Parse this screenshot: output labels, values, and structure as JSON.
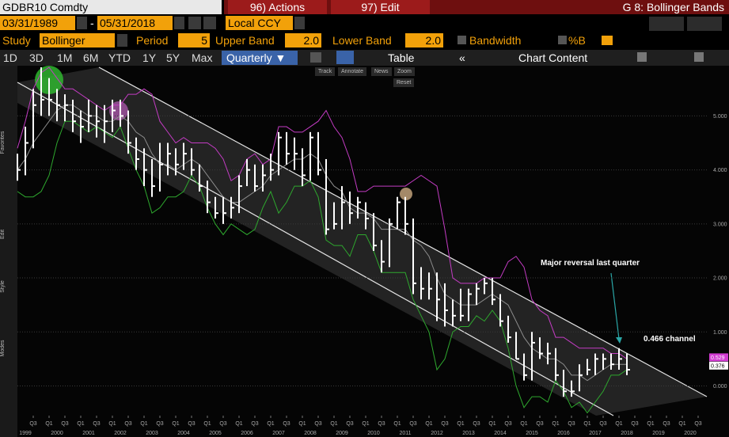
{
  "header": {
    "security": "GDBR10 Comdty",
    "actions": "96) Actions",
    "edit": "97) Edit",
    "page": "G 8: Bollinger Bands"
  },
  "controls": {
    "start_date": "03/31/1989",
    "separator": "-",
    "end_date": "05/31/2018",
    "currency": "Local CCY",
    "study_label": "Study",
    "study": "Bollinger",
    "period_label": "Period",
    "period": "5",
    "upper_label": "Upper Band",
    "upper": "2.0",
    "lower_label": "Lower Band",
    "lower": "2.0",
    "bandwidth": "Bandwidth",
    "percent_b": "%B"
  },
  "ranges": [
    "1D",
    "3D",
    "1M",
    "6M",
    "YTD",
    "1Y",
    "5Y",
    "Max"
  ],
  "frequency": "Quarterly ▼",
  "table": "Table",
  "collapse": "«",
  "chart_content": "Chart Content",
  "chart_tools": [
    "Track",
    "Annotate",
    "News",
    "Zoom",
    "Reset"
  ],
  "side_tabs": [
    "Favorites",
    "Edit",
    "Style",
    "Modes"
  ],
  "chart_data": {
    "type": "ohlc",
    "color": "#ffffff",
    "x": [
      1999,
      1999.25,
      1999.5,
      1999.75,
      2000,
      2000.25,
      2000.5,
      2000.75,
      2001,
      2001.25,
      2001.5,
      2001.75,
      2002,
      2002.25,
      2002.5,
      2002.75,
      2003,
      2003.25,
      2003.5,
      2003.75,
      2004,
      2004.25,
      2004.5,
      2004.75,
      2005,
      2005.25,
      2005.5,
      2005.75,
      2006,
      2006.25,
      2006.5,
      2006.75,
      2007,
      2007.25,
      2007.5,
      2007.75,
      2008,
      2008.25,
      2008.5,
      2008.75,
      2009,
      2009.25,
      2009.5,
      2009.75,
      2010,
      2010.25,
      2010.5,
      2010.75,
      2011,
      2011.25,
      2011.5,
      2011.75,
      2012,
      2012.25,
      2012.5,
      2012.75,
      2013,
      2013.25,
      2013.5,
      2013.75,
      2014,
      2014.25,
      2014.5,
      2014.75,
      2015,
      2015.25,
      2015.5,
      2015.75,
      2016,
      2016.25,
      2016.5,
      2016.75,
      2017,
      2017.25,
      2017.5,
      2017.75,
      2018,
      2018.25
    ],
    "high": [
      4.3,
      4.8,
      5.5,
      5.9,
      5.7,
      5.5,
      5.4,
      5.3,
      5.1,
      5.3,
      5.2,
      5.2,
      5.3,
      5.3,
      5.1,
      4.6,
      4.4,
      4.2,
      4.5,
      4.5,
      4.4,
      4.5,
      4.4,
      4.1,
      3.8,
      3.5,
      3.5,
      3.5,
      3.9,
      4.2,
      4.1,
      4.1,
      4.3,
      4.7,
      4.7,
      4.6,
      4.4,
      4.7,
      4.7,
      4.2,
      3.4,
      3.7,
      3.6,
      3.5,
      3.4,
      3.2,
      2.7,
      3.1,
      3.5,
      3.5,
      3.1,
      2.2,
      2.1,
      2.1,
      1.9,
      1.6,
      1.8,
      1.8,
      1.9,
      2.0,
      2.0,
      1.7,
      1.3,
      1.0,
      0.6,
      1.0,
      0.9,
      0.8,
      0.7,
      0.3,
      0.1,
      0.4,
      0.5,
      0.6,
      0.6,
      0.6,
      0.7,
      0.6
    ],
    "low": [
      3.8,
      3.9,
      4.4,
      5.0,
      5.0,
      4.9,
      4.9,
      4.7,
      4.5,
      4.7,
      4.6,
      4.5,
      4.7,
      4.8,
      4.3,
      4.0,
      3.7,
      3.5,
      3.6,
      3.9,
      3.9,
      4.0,
      3.9,
      3.6,
      3.2,
      3.1,
      3.0,
      3.1,
      3.2,
      3.7,
      3.6,
      3.6,
      3.8,
      3.9,
      4.1,
      4.0,
      3.7,
      3.8,
      3.9,
      2.8,
      2.9,
      2.9,
      3.0,
      3.1,
      2.9,
      2.5,
      2.1,
      2.2,
      2.9,
      2.8,
      1.7,
      1.6,
      1.6,
      1.2,
      1.1,
      1.1,
      1.2,
      1.2,
      1.5,
      1.7,
      1.5,
      1.1,
      0.8,
      0.5,
      0.1,
      0.1,
      0.5,
      0.4,
      0.1,
      -0.2,
      -0.2,
      -0.1,
      0.2,
      0.2,
      0.3,
      0.3,
      0.3,
      0.2
    ],
    "close": [
      4.0,
      4.5,
      5.2,
      5.3,
      5.3,
      5.2,
      5.2,
      4.9,
      4.8,
      5.0,
      4.9,
      4.9,
      5.1,
      5.0,
      4.5,
      4.2,
      4.0,
      3.7,
      4.1,
      4.3,
      4.1,
      4.3,
      4.0,
      3.7,
      3.4,
      3.2,
      3.2,
      3.3,
      3.7,
      4.0,
      3.7,
      3.9,
      4.0,
      4.6,
      4.3,
      4.3,
      3.9,
      4.6,
      4.0,
      2.9,
      3.0,
      3.4,
      3.2,
      3.4,
      3.1,
      2.6,
      2.3,
      3.0,
      3.4,
      3.0,
      1.9,
      1.8,
      1.8,
      1.6,
      1.4,
      1.3,
      1.3,
      1.7,
      1.8,
      1.9,
      1.6,
      1.2,
      0.9,
      0.5,
      0.2,
      0.8,
      0.6,
      0.6,
      0.2,
      -0.1,
      -0.1,
      0.2,
      0.3,
      0.5,
      0.5,
      0.4,
      0.5,
      0.3
    ],
    "bands": [
      {
        "color": "#c43cc4",
        "values": [
          4.4,
          4.9,
          5.5,
          5.8,
          5.9,
          5.7,
          5.5,
          5.5,
          5.4,
          5.3,
          5.2,
          5.1,
          5.2,
          5.2,
          5.4,
          5.4,
          5.5,
          5.4,
          4.9,
          4.7,
          4.5,
          4.6,
          4.5,
          4.5,
          4.5,
          4.4,
          4.2,
          3.8,
          3.9,
          4.2,
          4.3,
          4.1,
          4.2,
          4.8,
          4.8,
          4.7,
          4.7,
          4.8,
          4.9,
          5.1,
          4.8,
          4.6,
          4.2,
          3.6,
          3.6,
          3.7,
          3.7,
          3.7,
          3.7,
          3.7,
          3.8,
          3.9,
          3.8,
          3.7,
          2.9,
          2.0,
          1.9,
          1.9,
          1.9,
          2.0,
          2.0,
          2.0,
          2.3,
          2.4,
          2.2,
          1.6,
          1.4,
          1.3,
          0.9,
          0.9,
          0.8,
          0.7,
          0.7,
          0.7,
          0.7,
          0.6,
          0.6,
          0.5
        ]
      },
      {
        "color": "#8c8c8c",
        "values": [
          4.0,
          4.2,
          4.5,
          4.7,
          4.9,
          5.1,
          5.2,
          5.2,
          5.1,
          5.0,
          5.0,
          4.9,
          4.9,
          5.0,
          4.9,
          4.7,
          4.6,
          4.3,
          4.1,
          4.1,
          4.0,
          4.1,
          4.2,
          4.1,
          3.9,
          3.7,
          3.5,
          3.4,
          3.4,
          3.5,
          3.6,
          3.7,
          3.9,
          4.0,
          4.1,
          4.2,
          4.2,
          4.3,
          4.2,
          3.9,
          3.7,
          3.6,
          3.3,
          3.2,
          3.2,
          3.1,
          2.9,
          2.9,
          2.9,
          2.9,
          2.7,
          2.6,
          2.4,
          2.0,
          1.7,
          1.6,
          1.5,
          1.5,
          1.5,
          1.6,
          1.7,
          1.6,
          1.5,
          1.2,
          0.9,
          0.7,
          0.6,
          0.5,
          0.5,
          0.4,
          0.2,
          0.2,
          0.1,
          0.2,
          0.3,
          0.4,
          0.4,
          0.4
        ]
      },
      {
        "color": "#2ea82e",
        "values": [
          3.6,
          3.5,
          3.5,
          3.6,
          3.9,
          4.5,
          4.9,
          4.9,
          4.8,
          4.7,
          4.8,
          4.7,
          4.6,
          4.8,
          4.4,
          4.0,
          3.7,
          3.2,
          3.3,
          3.5,
          3.5,
          3.6,
          3.9,
          3.7,
          3.3,
          3.0,
          2.8,
          3.0,
          2.9,
          2.8,
          2.9,
          3.3,
          3.6,
          3.2,
          3.4,
          3.7,
          3.7,
          3.8,
          3.5,
          2.7,
          2.6,
          2.6,
          2.4,
          2.8,
          2.8,
          2.5,
          2.1,
          2.1,
          2.1,
          2.1,
          1.6,
          1.3,
          1.0,
          0.3,
          0.5,
          1.0,
          1.1,
          1.1,
          1.3,
          1.2,
          1.4,
          1.2,
          0.7,
          0.0,
          -0.4,
          -0.2,
          -0.2,
          -0.3,
          0.1,
          -0.1,
          -0.4,
          -0.3,
          -0.5,
          -0.3,
          -0.1,
          0.2,
          0.2,
          0.3
        ]
      }
    ],
    "xlim": [
      1999,
      2020.775
    ],
    "xticks": [
      {
        "value": 1999.5,
        "label": "Q3"
      },
      {
        "value": 2000,
        "label": "Q1"
      },
      {
        "value": 2000.5,
        "label": "Q3"
      },
      {
        "value": 2001,
        "label": "Q1"
      },
      {
        "value": 2001.5,
        "label": "Q3"
      },
      {
        "value": 2002,
        "label": "Q1"
      },
      {
        "value": 2002.5,
        "label": "Q3"
      },
      {
        "value": 2003,
        "label": "Q1"
      },
      {
        "value": 2003.5,
        "label": "Q3"
      },
      {
        "value": 2004,
        "label": "Q1"
      },
      {
        "value": 2004.5,
        "label": "Q3"
      },
      {
        "value": 2005,
        "label": "Q1"
      },
      {
        "value": 2005.5,
        "label": "Q3"
      },
      {
        "value": 2006,
        "label": "Q1"
      },
      {
        "value": 2006.5,
        "label": "Q3"
      },
      {
        "value": 2007,
        "label": "Q1"
      },
      {
        "value": 2007.5,
        "label": "Q3"
      },
      {
        "value": 2008,
        "label": "Q1"
      },
      {
        "value": 2008.5,
        "label": "Q3"
      },
      {
        "value": 2009,
        "label": "Q1"
      },
      {
        "value": 2009.5,
        "label": "Q3"
      },
      {
        "value": 2010,
        "label": "Q1"
      },
      {
        "value": 2010.5,
        "label": "Q3"
      },
      {
        "value": 2011,
        "label": "Q1"
      },
      {
        "value": 2011.5,
        "label": "Q3"
      },
      {
        "value": 2012,
        "label": "Q1"
      },
      {
        "value": 2012.5,
        "label": "Q3"
      },
      {
        "value": 2013,
        "label": "Q1"
      },
      {
        "value": 2013.5,
        "label": "Q3"
      },
      {
        "value": 2014,
        "label": "Q1"
      },
      {
        "value": 2014.5,
        "label": "Q3"
      },
      {
        "value": 2015,
        "label": "Q1"
      },
      {
        "value": 2015.5,
        "label": "Q3"
      },
      {
        "value": 2016,
        "label": "Q1"
      },
      {
        "value": 2016.5,
        "label": "Q3"
      },
      {
        "value": 2017,
        "label": "Q1"
      },
      {
        "value": 2017.5,
        "label": "Q3"
      },
      {
        "value": 2018,
        "label": "Q1"
      },
      {
        "value": 2018.5,
        "label": "Q3"
      },
      {
        "value": 2019,
        "label": "Q1"
      },
      {
        "value": 2019.5,
        "label": "Q3"
      },
      {
        "value": 2020,
        "label": "Q1"
      },
      {
        "value": 2020.5,
        "label": "Q3"
      }
    ],
    "year_ticks": [
      {
        "value": 1999.25,
        "label": "1999"
      },
      {
        "value": 2000.25,
        "label": "2000"
      },
      {
        "value": 2001.25,
        "label": "2001"
      },
      {
        "value": 2002.25,
        "label": "2002"
      },
      {
        "value": 2003.25,
        "label": "2003"
      },
      {
        "value": 2004.25,
        "label": "2004"
      },
      {
        "value": 2005.25,
        "label": "2005"
      },
      {
        "value": 2006.25,
        "label": "2006"
      },
      {
        "value": 2007.25,
        "label": "2007"
      },
      {
        "value": 2008.25,
        "label": "2008"
      },
      {
        "value": 2009.25,
        "label": "2009"
      },
      {
        "value": 2010.25,
        "label": "2010"
      },
      {
        "value": 2011.25,
        "label": "2011"
      },
      {
        "value": 2012.25,
        "label": "2012"
      },
      {
        "value": 2013.25,
        "label": "2013"
      },
      {
        "value": 2014.25,
        "label": "2014"
      },
      {
        "value": 2015.25,
        "label": "2015"
      },
      {
        "value": 2016.25,
        "label": "2016"
      },
      {
        "value": 2017.25,
        "label": "2017"
      },
      {
        "value": 2018.25,
        "label": "2018"
      },
      {
        "value": 2019.25,
        "label": "2019"
      },
      {
        "value": 2020.25,
        "label": "2020"
      }
    ],
    "ylim": [
      -0.55,
      5.9
    ],
    "yticks": [
      {
        "value": 0,
        "label": "0.000"
      },
      {
        "value": 1,
        "label": "1.000"
      },
      {
        "value": 2,
        "label": "2.000"
      },
      {
        "value": 3,
        "label": "3.000"
      },
      {
        "value": 4,
        "label": "4.000"
      },
      {
        "value": 5,
        "label": "5.000"
      }
    ],
    "grid": true,
    "last_labels": [
      {
        "value": 0.529,
        "label": "0.529",
        "color": "#d23cd2"
      },
      {
        "value": 0.376,
        "label": "0.376",
        "color": "#ffffff"
      }
    ],
    "annotations": [
      "Major reversal last quarter",
      "0.466 channel"
    ]
  }
}
